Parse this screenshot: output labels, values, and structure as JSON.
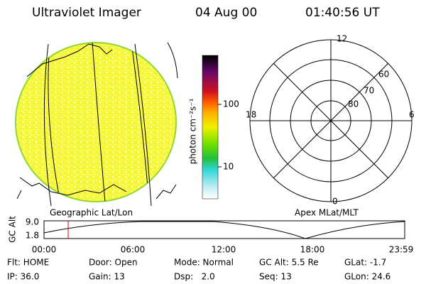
{
  "header": {
    "instrument": "Ultraviolet Imager",
    "date": "04 Aug 00",
    "time": "01:40:56 UT"
  },
  "image": {
    "label": "Geographic Lat/Lon"
  },
  "colorbar": {
    "unit": "photon cm⁻²s⁻¹",
    "ticks": [
      "100",
      "10"
    ]
  },
  "polar": {
    "label": "Apex MLat/MLT",
    "mlt": [
      "12",
      "18",
      "6",
      "0"
    ],
    "mlat": [
      "60",
      "70",
      "80"
    ]
  },
  "altitude": {
    "axis_label": "GC Alt",
    "ticks": [
      "9.0",
      "1.8"
    ],
    "time_ticks": [
      "00:00",
      "06:00",
      "12:00",
      "18:00",
      "23:59"
    ]
  },
  "status": [
    [
      "Flt: HOME",
      "Door: Open",
      "Mode: Normal",
      "GC Alt: 5.5 Re",
      "GLat: -1.7"
    ],
    [
      "IP: 36.0",
      "Gain: 13",
      "Dsp:   2.0",
      "Seq: 13",
      "GLon: 24.6"
    ]
  ]
}
